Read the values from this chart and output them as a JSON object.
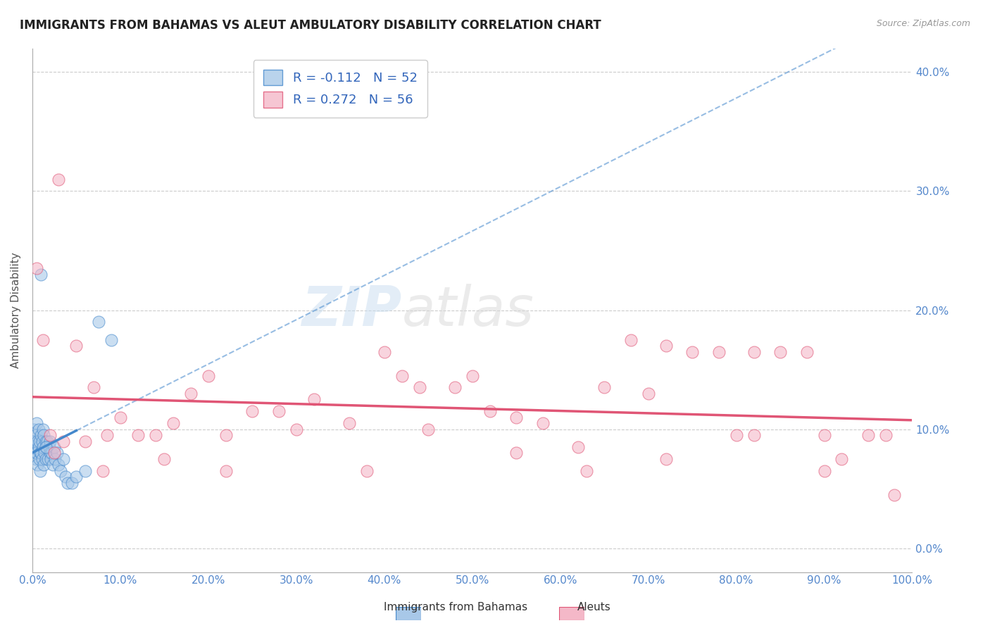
{
  "title": "IMMIGRANTS FROM BAHAMAS VS ALEUT AMBULATORY DISABILITY CORRELATION CHART",
  "source": "Source: ZipAtlas.com",
  "ylabel": "Ambulatory Disability",
  "legend_label1": "Immigrants from Bahamas",
  "legend_label2": "Aleuts",
  "r1": -0.112,
  "n1": 52,
  "r2": 0.272,
  "n2": 56,
  "color1": "#a8c8e8",
  "color2": "#f4b8c8",
  "line_color1": "#4488cc",
  "line_color2": "#e05575",
  "background": "#ffffff",
  "xlim": [
    0,
    100
  ],
  "ylim": [
    -2,
    42
  ],
  "xtick_vals": [
    0,
    10,
    20,
    30,
    40,
    50,
    60,
    70,
    80,
    90,
    100
  ],
  "ytick_vals": [
    0,
    10,
    20,
    30,
    40
  ],
  "grid_color": "#cccccc",
  "tick_color": "#5588cc",
  "blue_x": [
    0.1,
    0.2,
    0.2,
    0.3,
    0.3,
    0.4,
    0.4,
    0.5,
    0.5,
    0.6,
    0.6,
    0.7,
    0.7,
    0.8,
    0.8,
    0.9,
    0.9,
    1.0,
    1.0,
    1.1,
    1.1,
    1.2,
    1.2,
    1.3,
    1.3,
    1.4,
    1.5,
    1.5,
    1.6,
    1.7,
    1.8,
    1.9,
    2.0,
    2.0,
    2.1,
    2.2,
    2.3,
    2.5,
    2.6,
    2.8,
    3.0,
    3.2,
    3.5,
    3.8,
    4.0,
    4.5,
    5.0,
    6.0,
    7.5,
    9.0,
    1.0,
    1.5
  ],
  "blue_y": [
    9.0,
    8.5,
    10.0,
    9.0,
    8.0,
    7.5,
    9.5,
    8.0,
    10.5,
    7.0,
    9.0,
    8.5,
    10.0,
    7.5,
    9.0,
    6.5,
    8.0,
    9.5,
    8.0,
    7.5,
    9.0,
    8.5,
    10.0,
    7.0,
    9.5,
    8.0,
    9.0,
    7.5,
    8.5,
    9.0,
    7.5,
    8.5,
    9.0,
    8.0,
    7.5,
    8.0,
    7.0,
    8.5,
    7.5,
    8.0,
    7.0,
    6.5,
    7.5,
    6.0,
    5.5,
    5.5,
    6.0,
    6.5,
    19.0,
    17.5,
    23.0,
    8.5
  ],
  "pink_x": [
    0.5,
    1.2,
    2.0,
    2.5,
    3.5,
    5.0,
    6.0,
    7.0,
    8.5,
    10.0,
    12.0,
    14.0,
    16.0,
    18.0,
    20.0,
    22.0,
    25.0,
    28.0,
    32.0,
    36.0,
    40.0,
    42.0,
    44.0,
    48.0,
    50.0,
    52.0,
    55.0,
    58.0,
    62.0,
    65.0,
    68.0,
    70.0,
    72.0,
    75.0,
    78.0,
    80.0,
    82.0,
    85.0,
    88.0,
    90.0,
    92.0,
    95.0,
    98.0,
    3.0,
    8.0,
    15.0,
    22.0,
    30.0,
    38.0,
    45.0,
    55.0,
    63.0,
    72.0,
    82.0,
    90.0,
    97.0
  ],
  "pink_y": [
    23.5,
    17.5,
    9.5,
    8.0,
    9.0,
    17.0,
    9.0,
    13.5,
    9.5,
    11.0,
    9.5,
    9.5,
    10.5,
    13.0,
    14.5,
    9.5,
    11.5,
    11.5,
    12.5,
    10.5,
    16.5,
    14.5,
    13.5,
    13.5,
    14.5,
    11.5,
    11.0,
    10.5,
    8.5,
    13.5,
    17.5,
    13.0,
    17.0,
    16.5,
    16.5,
    9.5,
    16.5,
    16.5,
    16.5,
    9.5,
    7.5,
    9.5,
    4.5,
    31.0,
    6.5,
    7.5,
    6.5,
    10.0,
    6.5,
    10.0,
    8.0,
    6.5,
    7.5,
    9.5,
    6.5,
    9.5
  ],
  "watermark_text": "ZIP",
  "watermark_text2": "atlas"
}
